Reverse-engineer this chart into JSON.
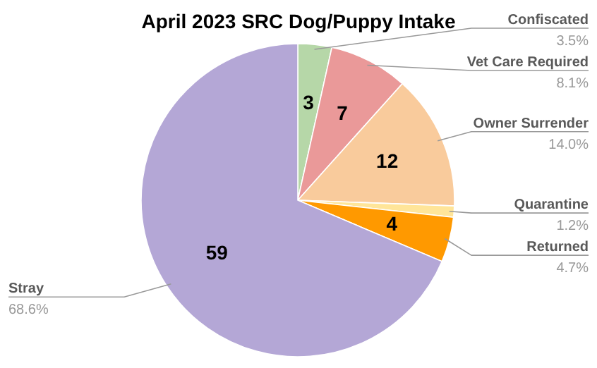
{
  "chart_data": {
    "type": "pie",
    "title": "April 2023 SRC Dog/Puppy Intake",
    "categories": [
      "Confiscated",
      "Vet Care Required",
      "Owner Surrender",
      "Quarantine",
      "Returned",
      "Stray"
    ],
    "values": [
      3,
      7,
      12,
      1,
      4,
      59
    ],
    "colors": [
      "#b6d7a8",
      "#ea9999",
      "#f9cb9c",
      "#ffe599",
      "#ff9900",
      "#b4a7d6"
    ],
    "value_labels": [
      "3",
      "7",
      "12",
      null,
      "4",
      "59"
    ],
    "annotations": [
      "3.5%",
      "8.1%",
      "14.0%",
      "1.2%",
      "4.7%",
      "68.6%"
    ]
  }
}
